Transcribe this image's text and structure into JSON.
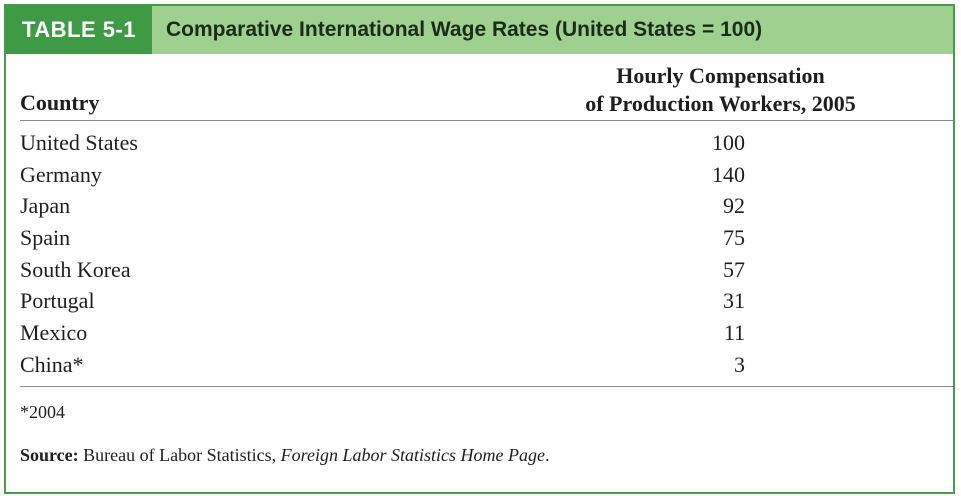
{
  "table": {
    "tag": "TABLE 5-1",
    "title": "Comparative International Wage Rates (United States = 100)",
    "header": {
      "country": "Country",
      "compensation_line1": "Hourly Compensation",
      "compensation_line2": "of Production Workers, 2005"
    },
    "rows": [
      {
        "country": "United States",
        "value": "100"
      },
      {
        "country": "Germany",
        "value": "140"
      },
      {
        "country": "Japan",
        "value": "92"
      },
      {
        "country": "Spain",
        "value": "75"
      },
      {
        "country": "South Korea",
        "value": "57"
      },
      {
        "country": "Portugal",
        "value": "31"
      },
      {
        "country": "Mexico",
        "value": "11"
      },
      {
        "country": "China*",
        "value": "3"
      }
    ],
    "footnote": "*2004",
    "source": {
      "label": "Source:",
      "text": " Bureau of Labor Statistics, ",
      "publication": "Foreign Labor Statistics Home Page",
      "end": "."
    }
  },
  "colors": {
    "tag_bg": "#3f9a45",
    "title_bg": "#9fd08f",
    "border": "#4a9a4c"
  }
}
